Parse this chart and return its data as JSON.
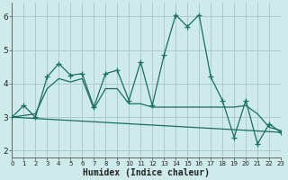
{
  "xlabel": "Humidex (Indice chaleur)",
  "bg_color": "#ceeaea",
  "grid_color": "#aacccc",
  "line_color": "#1a6e5e",
  "ylim": [
    1.8,
    6.4
  ],
  "xlim": [
    0,
    23
  ],
  "yticks": [
    2,
    3,
    4,
    5,
    6
  ],
  "xticks": [
    0,
    1,
    2,
    3,
    4,
    5,
    6,
    7,
    8,
    9,
    10,
    11,
    12,
    13,
    14,
    15,
    16,
    17,
    18,
    19,
    20,
    21,
    22,
    23
  ],
  "line1_x": [
    0,
    1,
    2,
    3,
    4,
    5,
    6,
    7,
    8,
    9,
    10,
    11,
    12,
    13,
    14,
    15,
    16,
    17,
    18,
    19,
    20,
    21,
    22,
    23
  ],
  "line1_y": [
    3.0,
    3.35,
    3.0,
    4.2,
    4.6,
    4.25,
    4.3,
    3.3,
    4.3,
    4.4,
    3.5,
    4.65,
    3.35,
    4.85,
    6.05,
    5.7,
    6.05,
    4.2,
    3.5,
    2.4,
    3.5,
    2.2,
    2.8,
    2.55
  ],
  "line2_x": [
    0,
    2,
    3,
    4,
    5,
    6,
    7,
    8,
    9,
    10,
    11,
    12,
    13,
    17,
    18,
    19,
    20,
    21,
    22,
    23
  ],
  "line2_y": [
    3.0,
    3.1,
    3.85,
    4.15,
    4.05,
    4.15,
    3.25,
    3.85,
    3.85,
    3.4,
    3.4,
    3.3,
    3.3,
    3.3,
    3.3,
    3.3,
    3.35,
    3.1,
    2.7,
    2.6
  ],
  "line3_x": [
    0,
    23
  ],
  "line3_y": [
    3.0,
    2.55
  ]
}
